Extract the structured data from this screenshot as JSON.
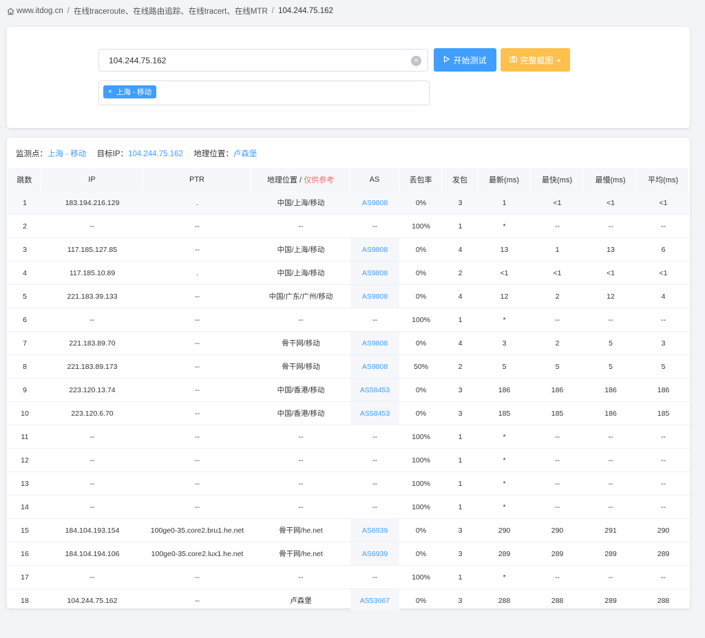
{
  "breadcrumb": {
    "home": "www.itdog.cn",
    "section": "在线traceroute、在线路由追踪、在线tracert、在线MTR",
    "current": "104.244.75.162",
    "separator": "/"
  },
  "form": {
    "ip_value": "104.244.75.162",
    "start_label": "开始测试",
    "screenshot_label": "完整截图",
    "tag_label": "上海 - 移动",
    "tag_close": "×",
    "clear_icon": "×"
  },
  "info": {
    "node_label": "监测点：",
    "node_value": "上海 - 移动",
    "target_label": "目标IP：",
    "target_value": "104.244.75.162",
    "geo_label": "地理位置：",
    "geo_value": "卢森堡"
  },
  "table": {
    "headers": {
      "hop": "跳数",
      "ip": "IP",
      "ptr": "PTR",
      "geo": "地理位置 / ",
      "geo_note": "仅供参考",
      "as": "AS",
      "loss": "丢包率",
      "sent": "发包",
      "last": "最新(ms)",
      "best": "最快(ms)",
      "worst": "最慢(ms)",
      "avg": "平均(ms)"
    },
    "rows": [
      {
        "hop": "1",
        "ip": "183.194.216.129",
        "ptr": ".",
        "geo": "中国/上海/移动",
        "as": "AS9808",
        "loss": "0%",
        "sent": "3",
        "last": "1",
        "best": "<1",
        "worst": "<1",
        "avg": "<1"
      },
      {
        "hop": "2",
        "ip": "--",
        "ptr": "--",
        "geo": "--",
        "as": "--",
        "loss": "100%",
        "sent": "1",
        "last": "*",
        "best": "--",
        "worst": "--",
        "avg": "--"
      },
      {
        "hop": "3",
        "ip": "117.185.127.85",
        "ptr": "--",
        "geo": "中国/上海/移动",
        "as": "AS9808",
        "loss": "0%",
        "sent": "4",
        "last": "13",
        "best": "1",
        "worst": "13",
        "avg": "6"
      },
      {
        "hop": "4",
        "ip": "117.185.10.89",
        "ptr": ".",
        "geo": "中国/上海/移动",
        "as": "AS9808",
        "loss": "0%",
        "sent": "2",
        "last": "<1",
        "best": "<1",
        "worst": "<1",
        "avg": "<1"
      },
      {
        "hop": "5",
        "ip": "221.183.39.133",
        "ptr": "--",
        "geo": "中国/广东/广州/移动",
        "as": "AS9808",
        "loss": "0%",
        "sent": "4",
        "last": "12",
        "best": "2",
        "worst": "12",
        "avg": "4"
      },
      {
        "hop": "6",
        "ip": "--",
        "ptr": "--",
        "geo": "--",
        "as": "--",
        "loss": "100%",
        "sent": "1",
        "last": "*",
        "best": "--",
        "worst": "--",
        "avg": "--"
      },
      {
        "hop": "7",
        "ip": "221.183.89.70",
        "ptr": "--",
        "geo": "骨干网/移动",
        "as": "AS9808",
        "loss": "0%",
        "sent": "4",
        "last": "3",
        "best": "2",
        "worst": "5",
        "avg": "3"
      },
      {
        "hop": "8",
        "ip": "221.183.89.173",
        "ptr": "--",
        "geo": "骨干网/移动",
        "as": "AS9808",
        "loss": "50%",
        "sent": "2",
        "last": "5",
        "best": "5",
        "worst": "5",
        "avg": "5"
      },
      {
        "hop": "9",
        "ip": "223.120.13.74",
        "ptr": "--",
        "geo": "中国/香港/移动",
        "as": "AS58453",
        "loss": "0%",
        "sent": "3",
        "last": "186",
        "best": "186",
        "worst": "186",
        "avg": "186"
      },
      {
        "hop": "10",
        "ip": "223.120.6.70",
        "ptr": "--",
        "geo": "中国/香港/移动",
        "as": "AS58453",
        "loss": "0%",
        "sent": "3",
        "last": "185",
        "best": "185",
        "worst": "186",
        "avg": "185"
      },
      {
        "hop": "11",
        "ip": "--",
        "ptr": "--",
        "geo": "--",
        "as": "--",
        "loss": "100%",
        "sent": "1",
        "last": "*",
        "best": "--",
        "worst": "--",
        "avg": "--"
      },
      {
        "hop": "12",
        "ip": "--",
        "ptr": "--",
        "geo": "--",
        "as": "--",
        "loss": "100%",
        "sent": "1",
        "last": "*",
        "best": "--",
        "worst": "--",
        "avg": "--"
      },
      {
        "hop": "13",
        "ip": "--",
        "ptr": "--",
        "geo": "--",
        "as": "--",
        "loss": "100%",
        "sent": "1",
        "last": "*",
        "best": "--",
        "worst": "--",
        "avg": "--"
      },
      {
        "hop": "14",
        "ip": "--",
        "ptr": "--",
        "geo": "--",
        "as": "--",
        "loss": "100%",
        "sent": "1",
        "last": "*",
        "best": "--",
        "worst": "--",
        "avg": "--"
      },
      {
        "hop": "15",
        "ip": "184.104.193.154",
        "ptr": "100ge0-35.core2.bru1.he.net",
        "geo": "骨干网/he.net",
        "as": "AS6939",
        "loss": "0%",
        "sent": "3",
        "last": "290",
        "best": "290",
        "worst": "291",
        "avg": "290"
      },
      {
        "hop": "16",
        "ip": "184.104.194.106",
        "ptr": "100ge0-35.core2.lux1.he.net",
        "geo": "骨干网/he.net",
        "as": "AS6939",
        "loss": "0%",
        "sent": "3",
        "last": "289",
        "best": "289",
        "worst": "289",
        "avg": "289"
      },
      {
        "hop": "17",
        "ip": "--",
        "ptr": "--",
        "geo": "--",
        "as": "--",
        "loss": "100%",
        "sent": "1",
        "last": "*",
        "best": "--",
        "worst": "--",
        "avg": "--"
      },
      {
        "hop": "18",
        "ip": "104.244.75.162",
        "ptr": "--",
        "geo": "卢森堡",
        "as": "AS53667",
        "loss": "0%",
        "sent": "3",
        "last": "288",
        "best": "288",
        "worst": "289",
        "avg": "288"
      }
    ]
  },
  "colors": {
    "accent": "#409eff",
    "warning": "#ffc04d",
    "danger": "#f56c6c"
  }
}
